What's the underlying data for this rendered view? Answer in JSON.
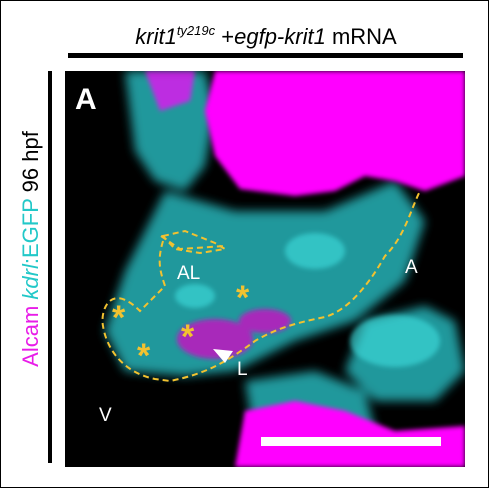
{
  "title": {
    "genotype": "krit1",
    "allele": "ty219c",
    "plus": "+",
    "construct": "egfp-krit1",
    "suffix": "mRNA"
  },
  "side_label": {
    "alcam": "Alcam",
    "kdrl": "kdrl",
    "egfp": ":EGFP",
    "stage": "96 hpf"
  },
  "panel": {
    "letter": "A"
  },
  "annotations": {
    "AL": "AL",
    "A": "A",
    "V": "V",
    "L": "L",
    "asterisk": "*"
  },
  "colors": {
    "alcam": "#ff00ff",
    "egfp": "#22c8c8",
    "outline": "#f2c230",
    "background": "#000000"
  }
}
